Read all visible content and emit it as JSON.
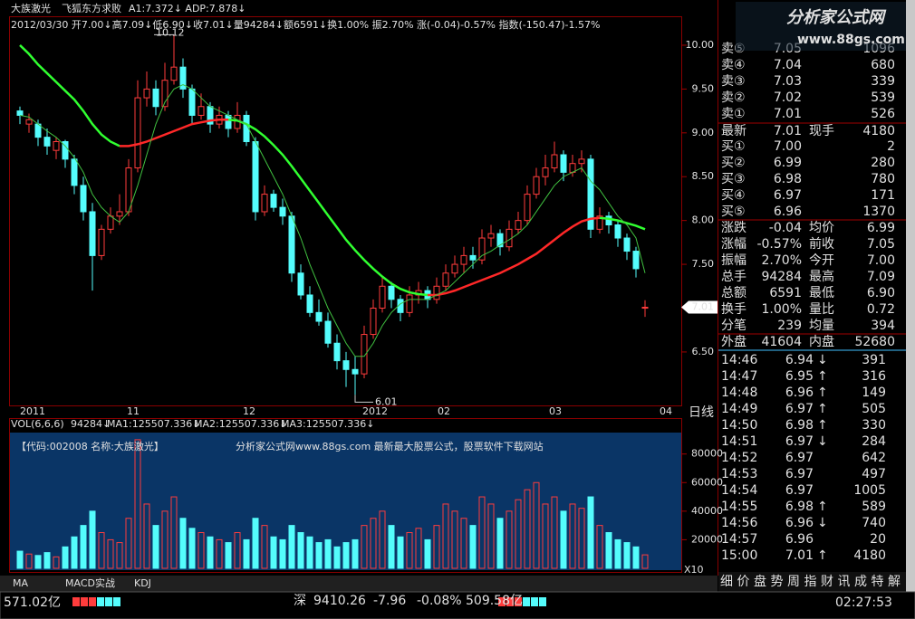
{
  "header": {
    "stock": "大族激光",
    "formula": "飞狐东方求败",
    "indicators": "A1:7.372↓ ADP:7.878↓",
    "quote": "2012/03/30 开7.00↓高7.09↓低6.90↓收7.01↓量94284↓额6591↓换1.00% 振2.70% 涨(-0.04)-0.57% 指数(-150.47)-1.57%"
  },
  "kline": {
    "ylim": [
      5.89,
      10.33
    ],
    "yticks": [
      {
        "value": 10,
        "label": "10.00"
      },
      {
        "value": 9.5,
        "label": "9.50"
      },
      {
        "value": 9,
        "label": "9.00"
      },
      {
        "value": 8.5,
        "label": "8.50"
      },
      {
        "value": 8,
        "label": "8.00"
      },
      {
        "value": 7.5,
        "label": "7.50"
      },
      {
        "value": 7,
        "label": "7.00"
      },
      {
        "value": 6.5,
        "label": "6.50"
      }
    ],
    "date_labels": [
      "2011",
      "11",
      "12",
      "2012",
      "02",
      "03",
      "04"
    ],
    "period": "日线",
    "high_label": "10.12",
    "low_label": "6.01",
    "last_label": "7.01",
    "candles": [
      [
        9.25,
        9.3,
        9.1,
        9.2
      ],
      [
        9.1,
        9.22,
        9.0,
        9.15
      ],
      [
        9.1,
        9.15,
        8.85,
        8.95
      ],
      [
        8.95,
        9.05,
        8.75,
        8.85
      ],
      [
        8.8,
        8.95,
        8.7,
        8.9
      ],
      [
        8.9,
        8.92,
        8.6,
        8.7
      ],
      [
        8.7,
        8.75,
        8.3,
        8.4
      ],
      [
        8.4,
        8.5,
        8.0,
        8.1
      ],
      [
        8.1,
        8.2,
        7.2,
        7.6
      ],
      [
        7.6,
        7.95,
        7.55,
        7.9
      ],
      [
        7.9,
        8.15,
        7.85,
        8.05
      ],
      [
        8.05,
        8.3,
        7.95,
        8.1
      ],
      [
        8.1,
        8.7,
        8.05,
        8.6
      ],
      [
        8.6,
        9.6,
        8.55,
        9.4
      ],
      [
        9.4,
        9.7,
        9.3,
        9.5
      ],
      [
        9.5,
        9.6,
        9.2,
        9.3
      ],
      [
        9.3,
        9.8,
        9.25,
        9.6
      ],
      [
        9.6,
        10.12,
        9.55,
        9.75
      ],
      [
        9.75,
        9.85,
        9.4,
        9.5
      ],
      [
        9.5,
        9.55,
        9.1,
        9.2
      ],
      [
        9.2,
        9.45,
        9.15,
        9.3
      ],
      [
        9.3,
        9.35,
        9.0,
        9.1
      ],
      [
        9.1,
        9.3,
        9.05,
        9.2
      ],
      [
        9.2,
        9.25,
        8.95,
        9.05
      ],
      [
        9.05,
        9.35,
        9.0,
        9.2
      ],
      [
        9.2,
        9.25,
        8.85,
        8.9
      ],
      [
        8.9,
        8.95,
        8.0,
        8.1
      ],
      [
        8.1,
        8.4,
        8.05,
        8.3
      ],
      [
        8.3,
        8.35,
        8.1,
        8.15
      ],
      [
        8.15,
        8.25,
        7.95,
        8.05
      ],
      [
        8.05,
        8.1,
        7.3,
        7.4
      ],
      [
        7.4,
        7.5,
        7.1,
        7.15
      ],
      [
        7.15,
        7.25,
        6.9,
        6.95
      ],
      [
        6.95,
        7.1,
        6.8,
        6.85
      ],
      [
        6.85,
        6.95,
        6.55,
        6.6
      ],
      [
        6.6,
        6.7,
        6.3,
        6.4
      ],
      [
        6.4,
        6.5,
        6.1,
        6.3
      ],
      [
        6.3,
        6.45,
        6.01,
        6.25
      ],
      [
        6.25,
        6.8,
        6.2,
        6.7
      ],
      [
        6.7,
        7.1,
        6.65,
        7.0
      ],
      [
        7.0,
        7.35,
        6.95,
        7.25
      ],
      [
        7.25,
        7.3,
        7.0,
        7.1
      ],
      [
        7.1,
        7.15,
        6.85,
        6.95
      ],
      [
        6.95,
        7.25,
        6.9,
        7.15
      ],
      [
        7.15,
        7.3,
        7.05,
        7.2
      ],
      [
        7.2,
        7.25,
        7.0,
        7.1
      ],
      [
        7.1,
        7.35,
        7.05,
        7.25
      ],
      [
        7.25,
        7.5,
        7.2,
        7.4
      ],
      [
        7.4,
        7.6,
        7.35,
        7.5
      ],
      [
        7.5,
        7.7,
        7.4,
        7.6
      ],
      [
        7.6,
        7.7,
        7.45,
        7.55
      ],
      [
        7.55,
        7.9,
        7.5,
        7.8
      ],
      [
        7.8,
        7.95,
        7.7,
        7.85
      ],
      [
        7.85,
        7.9,
        7.6,
        7.7
      ],
      [
        7.7,
        8.0,
        7.65,
        7.9
      ],
      [
        7.9,
        8.1,
        7.85,
        8.0
      ],
      [
        8.0,
        8.4,
        7.95,
        8.3
      ],
      [
        8.3,
        8.6,
        8.25,
        8.5
      ],
      [
        8.5,
        8.75,
        8.4,
        8.6
      ],
      [
        8.6,
        8.9,
        8.55,
        8.75
      ],
      [
        8.75,
        8.8,
        8.45,
        8.55
      ],
      [
        8.55,
        8.75,
        8.5,
        8.65
      ],
      [
        8.65,
        8.8,
        8.55,
        8.7
      ],
      [
        8.7,
        8.75,
        7.8,
        7.9
      ],
      [
        7.9,
        8.15,
        7.85,
        8.05
      ],
      [
        8.05,
        8.1,
        7.85,
        7.95
      ],
      [
        7.95,
        8.0,
        7.7,
        7.8
      ],
      [
        7.8,
        7.85,
        7.55,
        7.65
      ],
      [
        7.65,
        7.7,
        7.35,
        7.45
      ],
      [
        7.0,
        7.09,
        6.9,
        7.01
      ]
    ],
    "ma_long": [
      10.0,
      9.9,
      9.78,
      9.68,
      9.58,
      9.48,
      9.38,
      9.25,
      9.1,
      8.98,
      8.9,
      8.85,
      8.85,
      8.87,
      8.9,
      8.94,
      8.98,
      9.02,
      9.06,
      9.1,
      9.12,
      9.14,
      9.15,
      9.15,
      9.14,
      9.1,
      9.04,
      8.96,
      8.86,
      8.75,
      8.62,
      8.48,
      8.34,
      8.2,
      8.06,
      7.92,
      7.78,
      7.66,
      7.55,
      7.45,
      7.36,
      7.28,
      7.22,
      7.18,
      7.16,
      7.15,
      7.15,
      7.17,
      7.2,
      7.24,
      7.28,
      7.32,
      7.36,
      7.4,
      7.45,
      7.5,
      7.56,
      7.62,
      7.7,
      7.78,
      7.86,
      7.93,
      7.99,
      8.02,
      8.03,
      8.02,
      8.0,
      7.97,
      7.94,
      7.9
    ],
    "ma_short": [
      9.2,
      9.18,
      9.1,
      9.02,
      8.95,
      8.85,
      8.72,
      8.55,
      8.3,
      8.15,
      8.05,
      7.98,
      8.1,
      8.4,
      8.75,
      9.1,
      9.35,
      9.5,
      9.55,
      9.5,
      9.4,
      9.3,
      9.25,
      9.2,
      9.15,
      9.1,
      8.9,
      8.7,
      8.5,
      8.3,
      8.05,
      7.8,
      7.5,
      7.25,
      7.0,
      6.8,
      6.6,
      6.45,
      6.45,
      6.6,
      6.8,
      6.95,
      7.05,
      7.1,
      7.1,
      7.1,
      7.15,
      7.2,
      7.3,
      7.4,
      7.5,
      7.6,
      7.65,
      7.72,
      7.78,
      7.85,
      7.95,
      8.1,
      8.25,
      8.4,
      8.5,
      8.55,
      8.6,
      8.45,
      8.35,
      8.2,
      8.05,
      7.95,
      7.8,
      7.4
    ]
  },
  "volume": {
    "ylim": [
      0,
      95000
    ],
    "yticks": [
      20000,
      40000,
      60000,
      80000
    ],
    "multiplier": "X10",
    "legend": [
      "VOL(6,6,6)",
      "94284↓",
      "MA1:125507.336↓",
      "MA2:125507.336↓",
      "MA3:125507.336↓"
    ],
    "values": [
      12000,
      10000,
      9000,
      11000,
      8000,
      15000,
      22000,
      30000,
      40000,
      25000,
      20000,
      18000,
      35000,
      90000,
      45000,
      30000,
      40000,
      50000,
      35000,
      28000,
      25000,
      22000,
      20000,
      18000,
      25000,
      20000,
      35000,
      30000,
      22000,
      20000,
      30000,
      25000,
      22000,
      18000,
      20000,
      15000,
      18000,
      20000,
      30000,
      35000,
      40000,
      30000,
      22000,
      25000,
      28000,
      20000,
      30000,
      45000,
      40000,
      35000,
      30000,
      50000,
      45000,
      35000,
      40000,
      48000,
      55000,
      60000,
      45000,
      50000,
      40000,
      45000,
      42000,
      50000,
      30000,
      25000,
      20000,
      18000,
      15000,
      9428
    ]
  },
  "banner": {
    "code": "【代码:002008 名称:大族激光】",
    "site": "分析家公式网www.88gs.com 最新最大股票公式，股票软件下载网站"
  },
  "watermark": {
    "name": "分析家公式网",
    "url": "www.88gs.com"
  },
  "order_book": {
    "asks": [
      [
        "卖⑤",
        "7.05",
        "1096"
      ],
      [
        "卖④",
        "7.04",
        "680"
      ],
      [
        "卖③",
        "7.03",
        "339"
      ],
      [
        "卖②",
        "7.02",
        "539"
      ],
      [
        "卖①",
        "7.01",
        "526"
      ]
    ],
    "last": [
      "最新",
      "7.01",
      "现手",
      "4180"
    ],
    "bids": [
      [
        "买①",
        "7.00",
        "2"
      ],
      [
        "买②",
        "6.99",
        "280"
      ],
      [
        "买③",
        "6.98",
        "780"
      ],
      [
        "买④",
        "6.97",
        "171"
      ],
      [
        "买⑤",
        "6.96",
        "1370"
      ]
    ]
  },
  "stats": [
    [
      "涨跌",
      "-0.04",
      "均价",
      "6.99"
    ],
    [
      "涨幅",
      "-0.57%",
      "前收",
      "7.05"
    ],
    [
      "振幅",
      "2.70%",
      "今开",
      "7.00"
    ],
    [
      "总手",
      "94284",
      "最高",
      "7.09"
    ],
    [
      "总额",
      "6591",
      "最低",
      "6.90"
    ],
    [
      "换手",
      "1.00%",
      "量比",
      "0.72"
    ],
    [
      "分笔",
      "239",
      "均量",
      "394"
    ],
    [
      "外盘",
      "41604",
      "内盘",
      "52680"
    ]
  ],
  "ticks": [
    {
      "time": "14:46",
      "price": "6.94",
      "dir": "↓",
      "volume": "391"
    },
    {
      "time": "14:47",
      "price": "6.95",
      "dir": "↑",
      "volume": "316"
    },
    {
      "time": "14:48",
      "price": "6.96",
      "dir": "↑",
      "volume": "149"
    },
    {
      "time": "14:49",
      "price": "6.97",
      "dir": "↑",
      "volume": "505"
    },
    {
      "time": "14:50",
      "price": "6.98",
      "dir": "↑",
      "volume": "330"
    },
    {
      "time": "14:51",
      "price": "6.97",
      "dir": "↓",
      "volume": "284"
    },
    {
      "time": "14:52",
      "price": "6.97",
      "volume": "642"
    },
    {
      "time": "14:53",
      "price": "6.97",
      "volume": "497"
    },
    {
      "time": "14:54",
      "price": "6.97",
      "volume": "1005"
    },
    {
      "time": "14:55",
      "price": "6.98",
      "dir": "↑",
      "volume": "589"
    },
    {
      "time": "14:56",
      "price": "6.96",
      "dir": "↓",
      "volume": "740"
    },
    {
      "time": "14:57",
      "price": "6.96",
      "volume": "20"
    },
    {
      "time": "15:00",
      "price": "7.01",
      "dir": "↑",
      "volume": "4180"
    }
  ],
  "indicator_tabs": [
    "MA",
    "MACD实战",
    "KDJ"
  ],
  "info_tabs": [
    "细",
    "价",
    "盘",
    "势",
    "周",
    "指",
    "财",
    "讯",
    "成",
    "特",
    "解"
  ],
  "status": {
    "left": "571.02亿",
    "market": "深",
    "index": "9410.26",
    "change": "-7.96",
    "pct": "-0.08%",
    "amount": "509.58亿",
    "time": "02:27:53"
  }
}
